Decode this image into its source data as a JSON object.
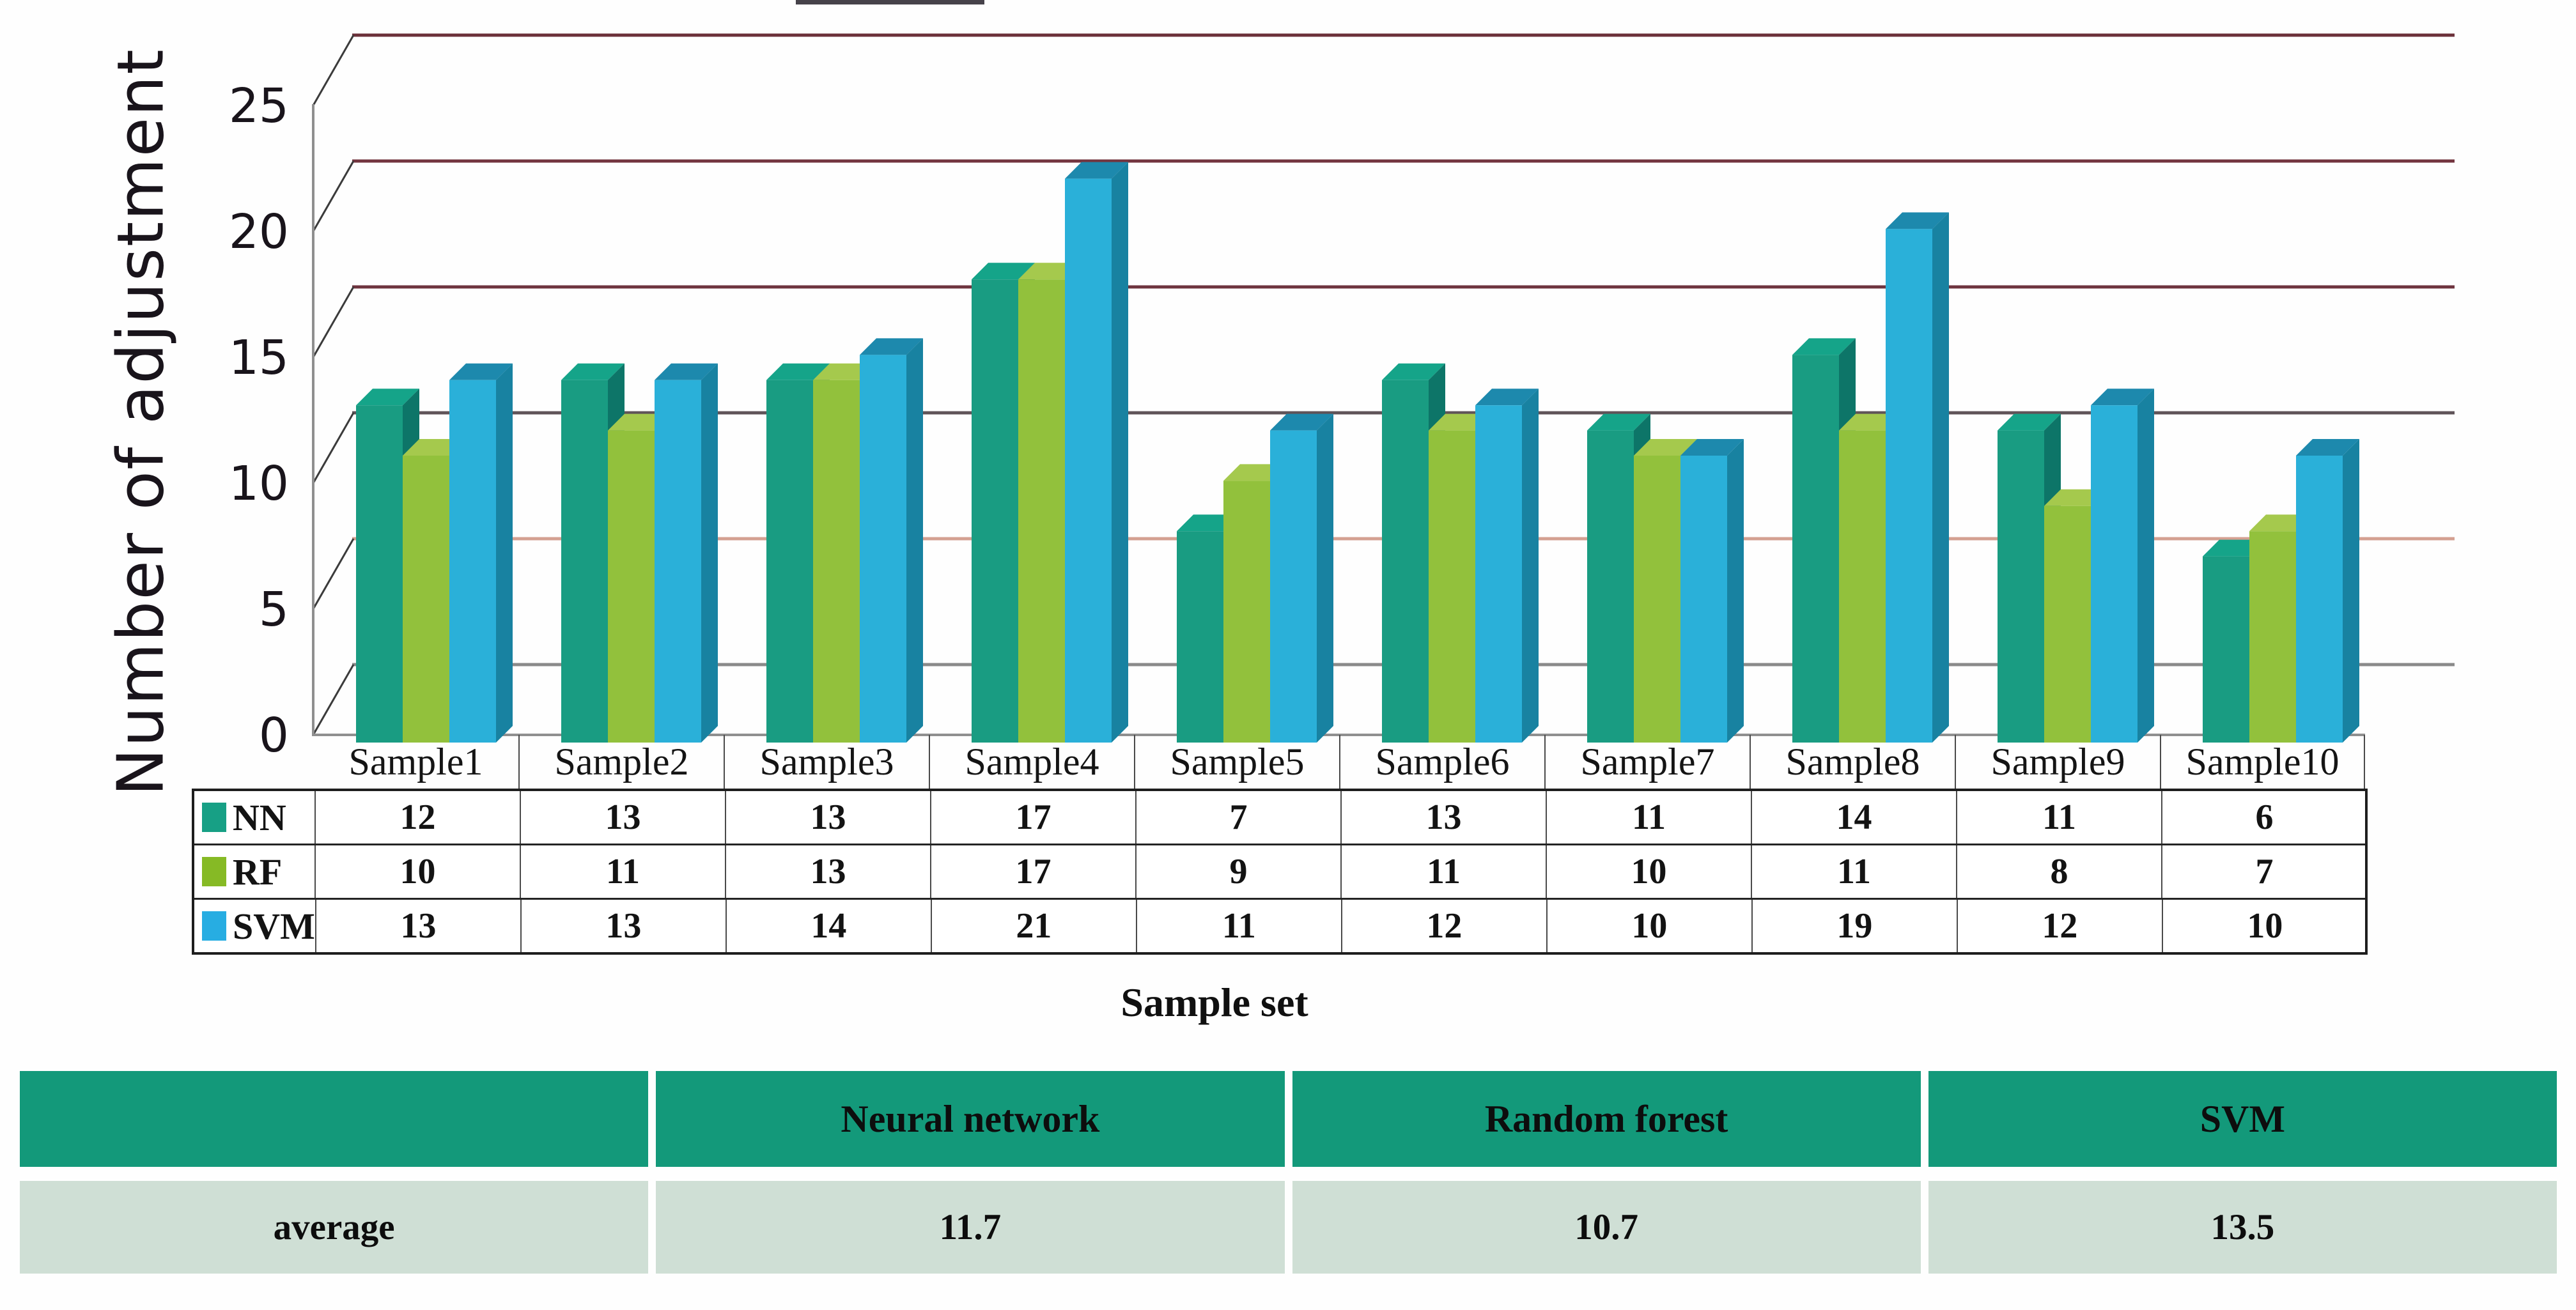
{
  "chart_data": {
    "type": "bar",
    "style": "3d-clustered-column",
    "title": "",
    "ylabel": "Number of adjustment",
    "xlabel": "Sample set",
    "ylim": [
      0,
      25
    ],
    "yticks": [
      0,
      5,
      10,
      15,
      20,
      25
    ],
    "grid": true,
    "legend_position": "table-left",
    "categories": [
      "Sample1",
      "Sample2",
      "Sample3",
      "Sample4",
      "Sample5",
      "Sample6",
      "Sample7",
      "Sample8",
      "Sample9",
      "Sample10"
    ],
    "series": [
      {
        "name": "NN",
        "color": "#17a085",
        "front": "#199c82",
        "top": "#15a489",
        "side": "#0d7568",
        "values": [
          12,
          13,
          13,
          17,
          7,
          13,
          11,
          14,
          11,
          6
        ]
      },
      {
        "name": "RF",
        "color": "#86ba25",
        "front": "#92c13c",
        "top": "#a5c94d",
        "side": "#6fa024",
        "values": [
          10,
          11,
          13,
          17,
          9,
          11,
          10,
          11,
          8,
          7
        ]
      },
      {
        "name": "SVM",
        "color": "#27ade2",
        "front": "#2ab0d9",
        "top": "#1d89ad",
        "side": "#1882a1",
        "values": [
          13,
          13,
          14,
          21,
          11,
          12,
          10,
          19,
          12,
          10
        ]
      }
    ],
    "gridline_colors": {
      "0": "#8a8a8a",
      "5": "#d4a091",
      "10": "#5f5358",
      "15": "#6e343e",
      "20": "#73353f",
      "25": "#6b3039"
    }
  },
  "summary_table": {
    "headers": [
      "",
      "Neural network",
      "Random forest",
      "SVM"
    ],
    "row_label": "average",
    "values": [
      "11.7",
      "10.7",
      "13.5"
    ],
    "header_bg": "#13997a",
    "row_bg": "#cfdfd5"
  }
}
